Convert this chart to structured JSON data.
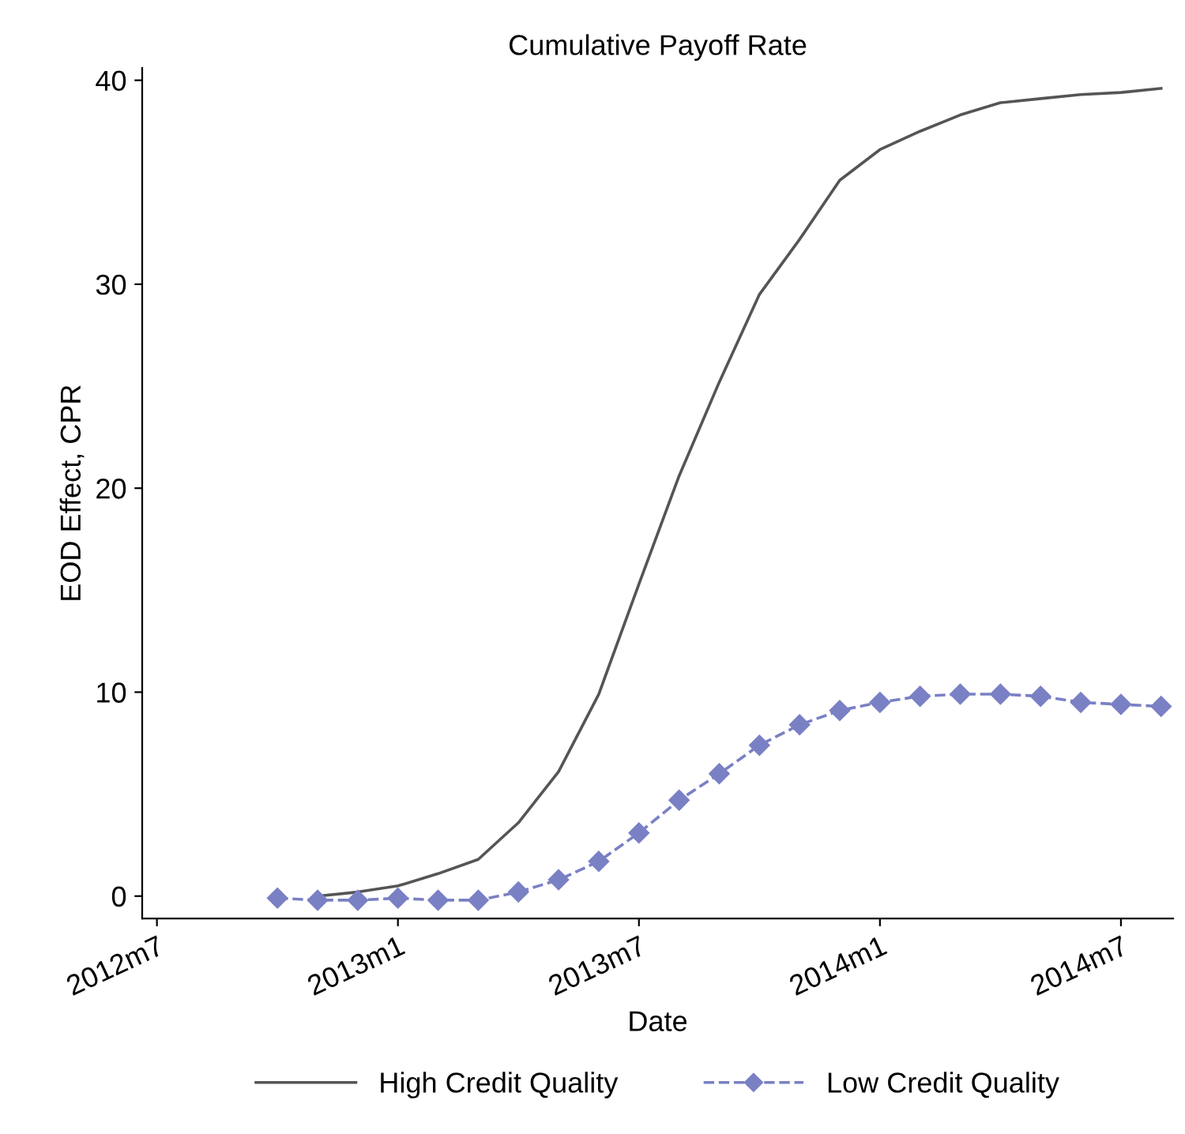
{
  "chart_data": {
    "type": "line",
    "title": "Cumulative Payoff Rate",
    "xlabel": "Date",
    "ylabel": "EOD Effect, CPR",
    "x": [
      "2012-10",
      "2012-11",
      "2012-12",
      "2013-01",
      "2013-02",
      "2013-03",
      "2013-04",
      "2013-05",
      "2013-06",
      "2013-07",
      "2013-08",
      "2013-09",
      "2013-10",
      "2013-11",
      "2013-12",
      "2014-01",
      "2014-02",
      "2014-03",
      "2014-04",
      "2014-05",
      "2014-06",
      "2014-07",
      "2014-08"
    ],
    "series": [
      {
        "name": "High Credit Quality",
        "color": "#555555",
        "line_style": "solid",
        "marker": "none",
        "values": [
          null,
          0.0,
          0.2,
          0.5,
          1.1,
          1.8,
          3.6,
          6.1,
          9.9,
          15.3,
          20.6,
          25.2,
          29.5,
          32.2,
          35.1,
          36.6,
          37.5,
          38.3,
          38.9,
          39.1,
          39.3,
          39.4,
          39.6
        ]
      },
      {
        "name": "Low Credit Quality",
        "color": "#7a80c4",
        "line_style": "dashed",
        "marker": "diamond",
        "values": [
          -0.1,
          -0.2,
          -0.2,
          -0.1,
          -0.2,
          -0.2,
          0.2,
          0.8,
          1.7,
          3.1,
          4.7,
          6.0,
          7.4,
          8.4,
          9.1,
          9.5,
          9.8,
          9.9,
          9.9,
          9.8,
          9.5,
          9.4,
          9.3
        ]
      }
    ],
    "xlim": [
      "2012-06-20",
      "2014-08-10"
    ],
    "xticks": [
      {
        "value": "2012-07",
        "label": "2012m7"
      },
      {
        "value": "2013-01",
        "label": "2013m1"
      },
      {
        "value": "2013-07",
        "label": "2013m7"
      },
      {
        "value": "2014-01",
        "label": "2014m1"
      },
      {
        "value": "2014-07",
        "label": "2014m7"
      }
    ],
    "ylim": [
      -1.1,
      40.6
    ],
    "yticks": [
      0,
      10,
      20,
      30,
      40
    ],
    "grid": false,
    "legend": "bottom"
  }
}
